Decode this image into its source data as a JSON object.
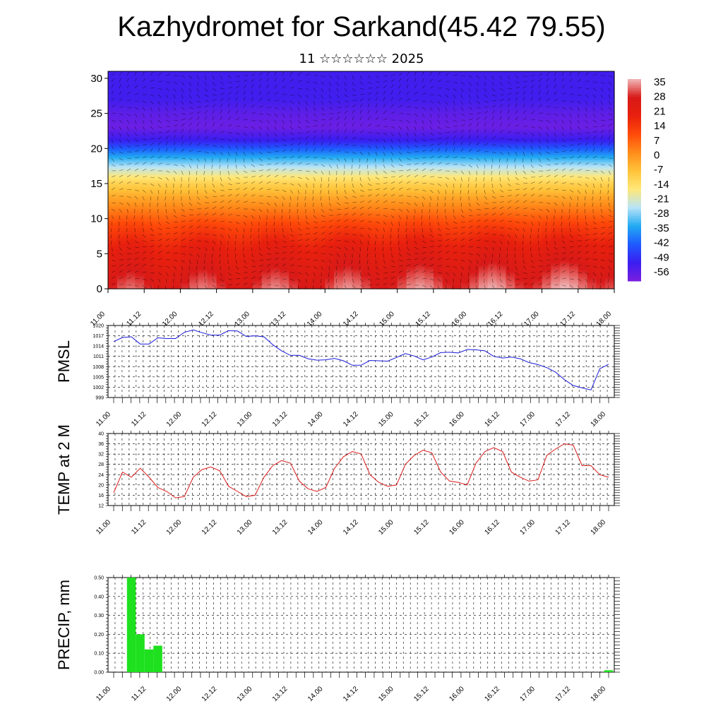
{
  "title": "Kazhydromet for Sarkand(45.42 79.55)",
  "subtitle": "11 ☆☆☆☆☆☆ 2025",
  "time_labels": [
    "11.00",
    "11.12",
    "12.00",
    "12.12",
    "13.00",
    "13.12",
    "14.00",
    "14.12",
    "15.00",
    "15.12",
    "16.00",
    "16.12",
    "17.00",
    "17.12",
    "18.00"
  ],
  "chart_data": [
    {
      "type": "heatmap",
      "name": "temperature-cross-section",
      "y_ticks": [
        0,
        5,
        10,
        15,
        20,
        25,
        30
      ],
      "ylim": [
        0,
        31
      ],
      "colorbar": {
        "labels": [
          "35",
          "28",
          "21",
          "14",
          "7",
          "0",
          "-7",
          "-14",
          "-21",
          "-28",
          "-35",
          "-42",
          "-49",
          "-56"
        ],
        "range": [
          -60,
          38
        ],
        "colors": [
          "#7a1fe0",
          "#3a1ef0",
          "#1f5bff",
          "#22aaf2",
          "#b8e4f8",
          "#ffe878",
          "#ffc33a",
          "#ff8c1a",
          "#ff4a0a",
          "#e8200e",
          "#d81a18",
          "#f0b8b8"
        ]
      },
      "profile_heights": [
        0,
        3,
        6,
        9,
        11,
        13,
        15,
        17,
        19,
        21,
        23,
        25,
        27,
        31
      ],
      "profile_temps": [
        30,
        25,
        20,
        12,
        5,
        -2,
        -10,
        -22,
        -35,
        -50,
        -58,
        -56,
        -52,
        -52
      ]
    },
    {
      "type": "line",
      "name": "pmsl",
      "ylabel": "PMSL",
      "y_ticks": [
        "999",
        "1002",
        "1005",
        "1008",
        "1011",
        "1014",
        "1017",
        "1020"
      ],
      "ylim": [
        999,
        1020
      ],
      "color": "#1a1adc",
      "values": [
        1015.3,
        1016.5,
        1016.7,
        1014.6,
        1014.6,
        1016.4,
        1016.2,
        1016.2,
        1018.0,
        1018.7,
        1017.9,
        1017.2,
        1017.2,
        1018.5,
        1018.4,
        1016.8,
        1017.0,
        1016.7,
        1014.4,
        1012.6,
        1011.3,
        1011.3,
        1010.3,
        1009.9,
        1010.0,
        1010.4,
        1009.7,
        1008.4,
        1008.4,
        1009.8,
        1009.7,
        1009.6,
        1010.7,
        1011.8,
        1011.1,
        1010.0,
        1010.8,
        1012.1,
        1012.2,
        1012.0,
        1013.0,
        1012.9,
        1012.6,
        1011.0,
        1010.5,
        1010.8,
        1010.3,
        1009.2,
        1008.6,
        1007.7,
        1006.4,
        1004.2,
        1002.5,
        1001.8,
        1001.2,
        1007.4,
        1008.7
      ]
    },
    {
      "type": "line",
      "name": "temp-2m",
      "ylabel": "TEMP at 2 M",
      "y_ticks": [
        "12",
        "16",
        "20",
        "24",
        "28",
        "32",
        "36",
        "40"
      ],
      "ylim": [
        12,
        40
      ],
      "color": "#dc1a1a",
      "values": [
        17.0,
        25.0,
        23.0,
        26.5,
        23.0,
        19.0,
        17.5,
        15.0,
        15.5,
        23.0,
        26.0,
        27.0,
        25.5,
        19.5,
        17.5,
        15.5,
        16.0,
        23.0,
        27.5,
        29.5,
        28.5,
        21.5,
        18.5,
        17.5,
        19.0,
        26.5,
        31.0,
        33.0,
        32.0,
        24.0,
        21.0,
        19.5,
        20.0,
        28.0,
        31.5,
        33.5,
        32.5,
        25.0,
        21.5,
        21.0,
        20.0,
        28.5,
        33.0,
        34.5,
        33.0,
        25.0,
        23.0,
        21.5,
        22.0,
        31.5,
        34.0,
        36.0,
        35.5,
        27.5,
        27.5,
        24.0,
        23.0
      ]
    },
    {
      "type": "bar",
      "name": "precip",
      "ylabel": "PRECIP, mm",
      "y_ticks": [
        "0.00",
        "0.10",
        "0.20",
        "0.30",
        "0.40",
        "0.50"
      ],
      "ylim": [
        0,
        0.5
      ],
      "color": "#1ee01e",
      "values": [
        0,
        0,
        0.5,
        0.2,
        0.12,
        0.14,
        0,
        0,
        0,
        0,
        0,
        0,
        0,
        0,
        0,
        0,
        0,
        0,
        0,
        0,
        0,
        0,
        0,
        0,
        0,
        0,
        0,
        0,
        0,
        0,
        0,
        0,
        0,
        0,
        0,
        0,
        0,
        0,
        0,
        0,
        0,
        0,
        0,
        0,
        0,
        0,
        0,
        0,
        0,
        0,
        0,
        0,
        0,
        0,
        0,
        0,
        0.01
      ]
    }
  ]
}
